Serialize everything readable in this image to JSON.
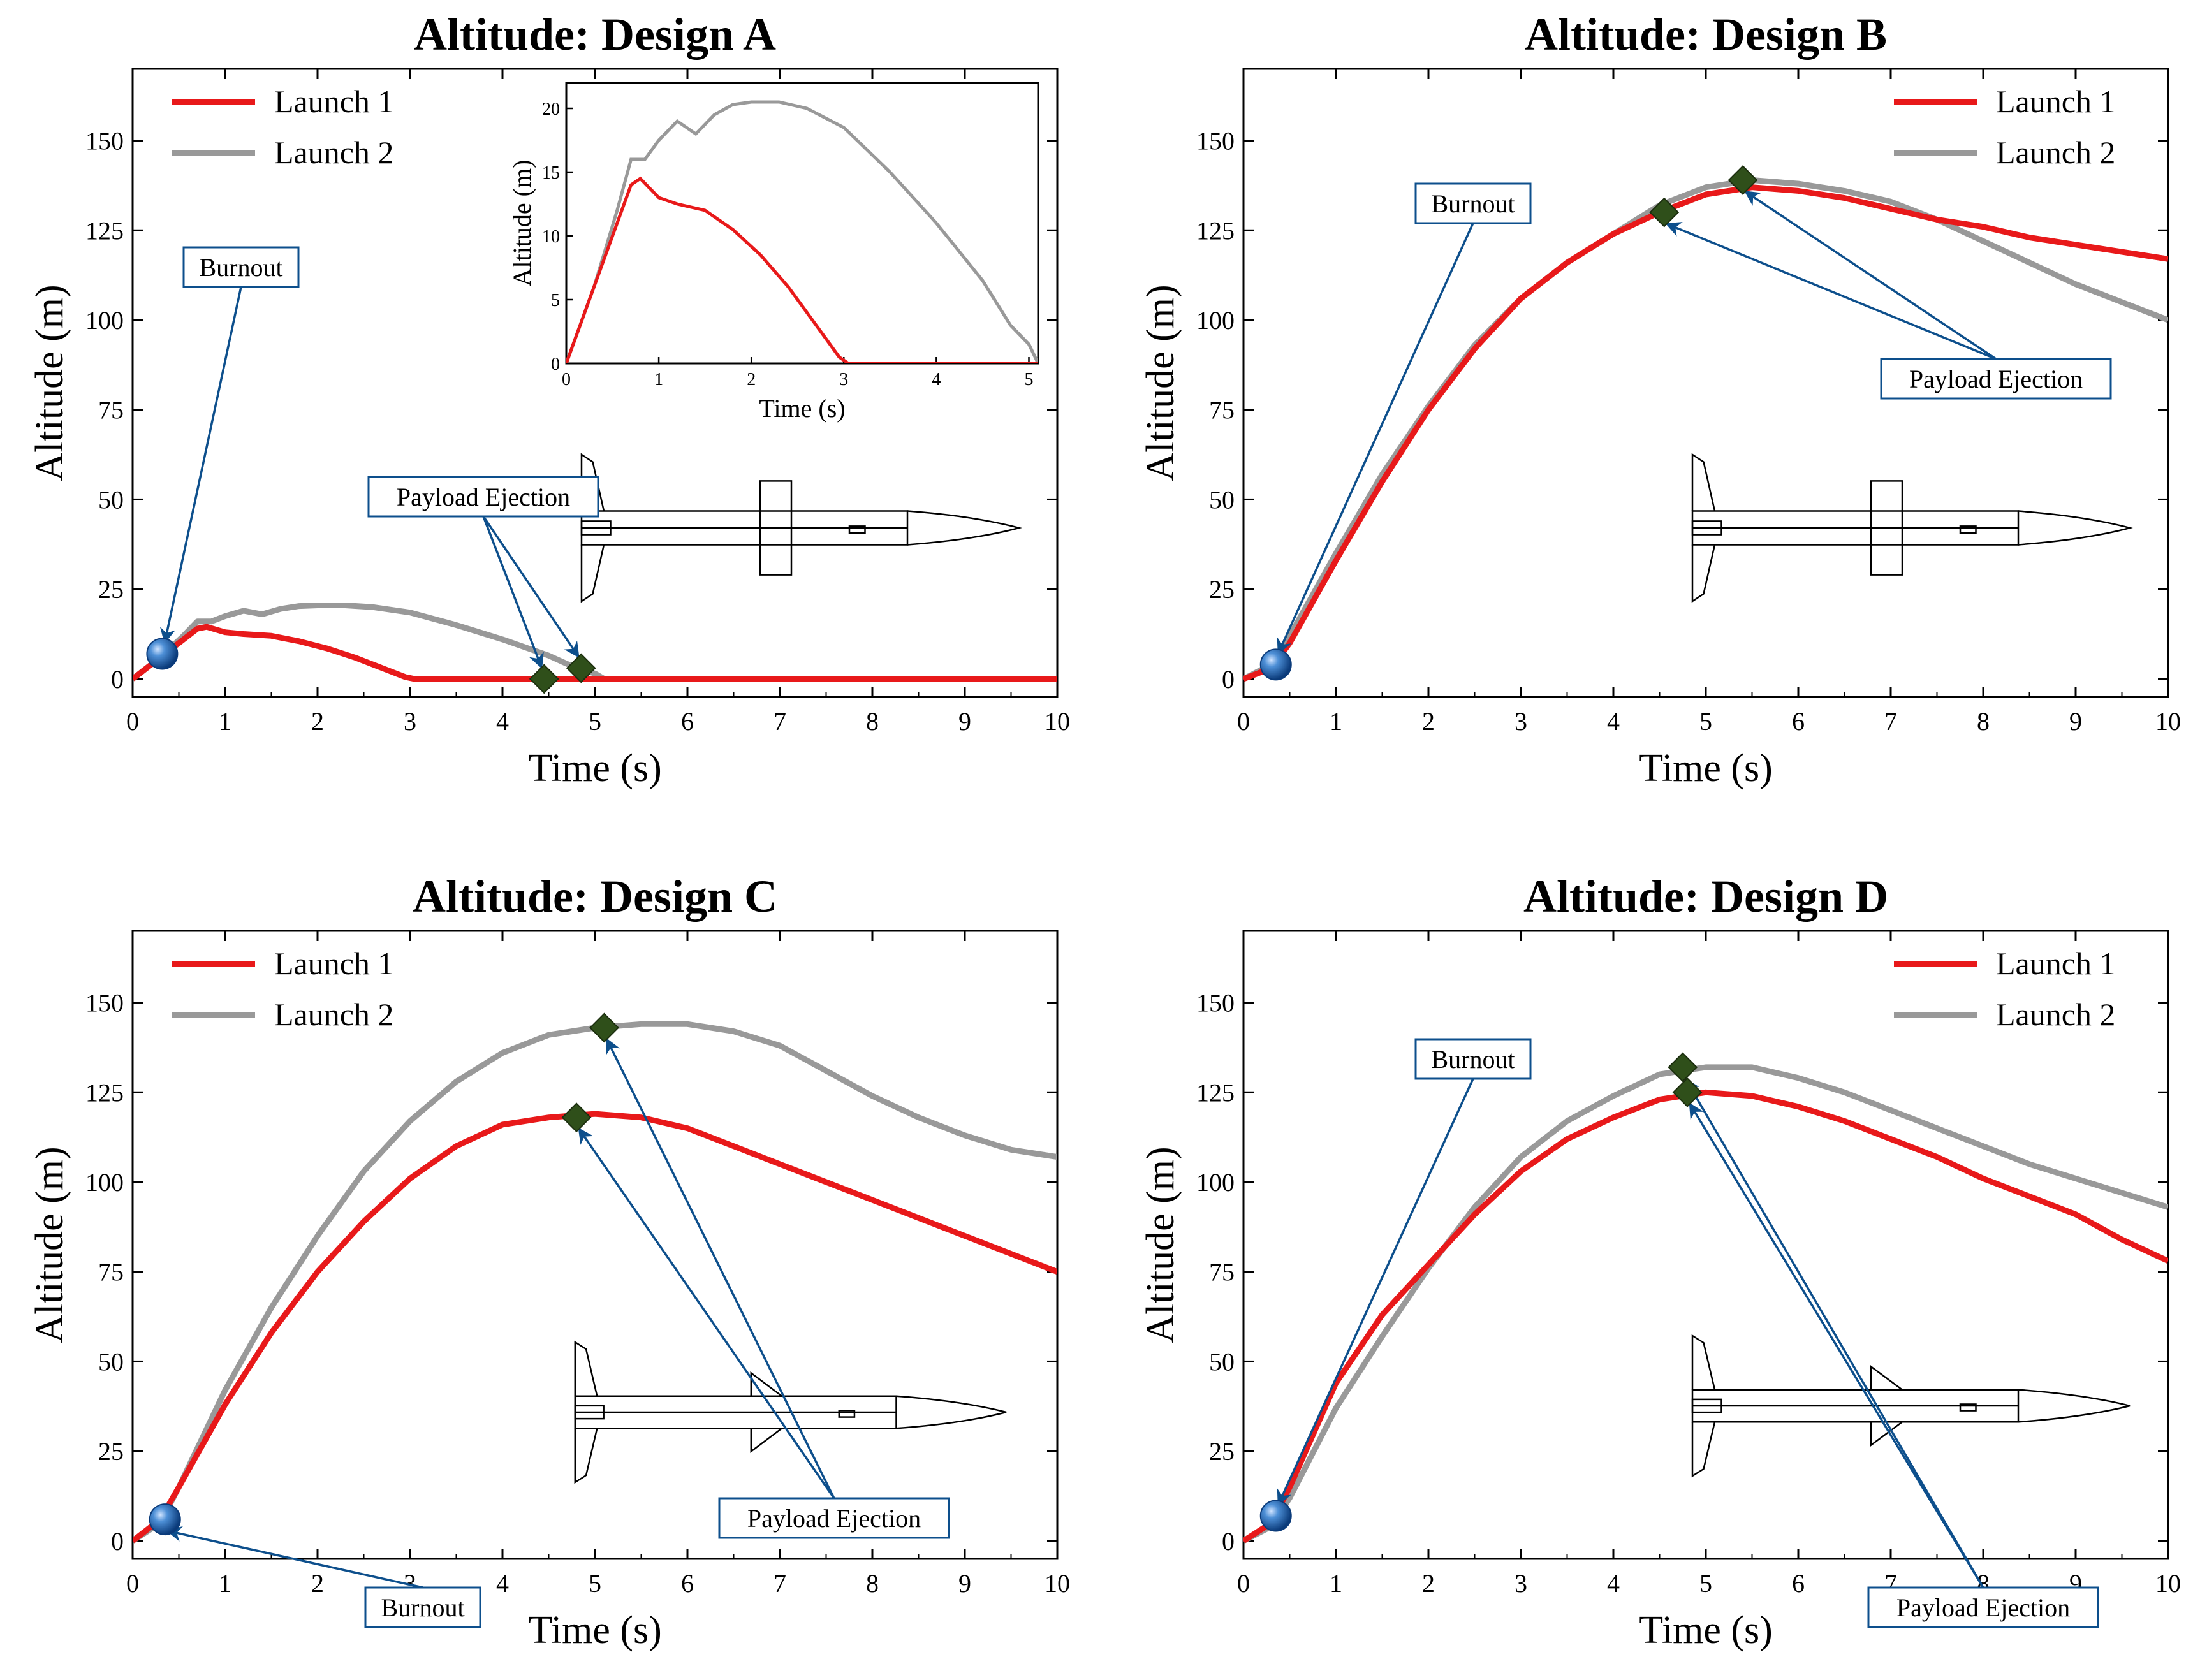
{
  "colors": {
    "launch1": "#e8191a",
    "launch2": "#999999",
    "annotation": "#0d4f8c",
    "diamond": "#2f4f1a",
    "sphere": "#1a5ca8"
  },
  "chart_data": [
    {
      "type": "line",
      "title": "Altitude: Design A",
      "xlabel": "Time (s)",
      "ylabel": "Altitude (m)",
      "xlim": [
        0,
        10
      ],
      "ylim": [
        -5,
        170
      ],
      "xticks": [
        "0",
        "1",
        "2",
        "3",
        "4",
        "5",
        "6",
        "7",
        "8",
        "9",
        "10"
      ],
      "yticks": [
        "0",
        "25",
        "50",
        "75",
        "100",
        "125",
        "150"
      ],
      "legend": "top-left",
      "series": [
        {
          "name": "Launch 1",
          "color": "#e8191a",
          "x": [
            0,
            0.3,
            0.55,
            0.7,
            0.8,
            1.0,
            1.2,
            1.5,
            1.8,
            2.1,
            2.4,
            2.6,
            2.8,
            2.95,
            3.05,
            3.5,
            4.0,
            4.5,
            5.0,
            6.0,
            8.0,
            10.0
          ],
          "y": [
            0,
            6,
            11,
            14,
            14.5,
            13,
            12.5,
            12,
            10.5,
            8.5,
            6,
            4,
            2,
            0.5,
            0,
            0,
            0,
            0,
            0,
            0,
            0,
            0
          ]
        },
        {
          "name": "Launch 2",
          "color": "#999999",
          "x": [
            0,
            0.3,
            0.55,
            0.7,
            0.85,
            1.0,
            1.2,
            1.4,
            1.6,
            1.8,
            2.0,
            2.3,
            2.6,
            3.0,
            3.5,
            4.0,
            4.5,
            4.8,
            5.0,
            5.1,
            5.5,
            6.0,
            8.0,
            10.0
          ],
          "y": [
            0,
            6,
            12,
            16,
            16,
            17.5,
            19,
            18,
            19.5,
            20.3,
            20.5,
            20.5,
            20,
            18.5,
            15,
            11,
            6.5,
            3,
            1.5,
            0,
            0,
            0,
            0,
            0
          ]
        }
      ],
      "annotations": [
        {
          "label": "Burnout",
          "marker": "sphere",
          "point": [
            0.32,
            7
          ]
        },
        {
          "label": "Payload Ejection",
          "marker": "diamond",
          "points": [
            [
              4.45,
              0
            ],
            [
              4.85,
              3
            ]
          ]
        }
      ],
      "inset": {
        "xlabel": "Time (s)",
        "ylabel": "Altitude (m)",
        "xlim": [
          0,
          5.1
        ],
        "ylim": [
          0,
          22
        ],
        "xticks": [
          "0",
          "1",
          "2",
          "3",
          "4",
          "5"
        ],
        "yticks": [
          "0",
          "5",
          "10",
          "15",
          "20"
        ]
      }
    },
    {
      "type": "line",
      "title": "Altitude: Design B",
      "xlabel": "Time (s)",
      "ylabel": "Altitude (m)",
      "xlim": [
        0,
        10
      ],
      "ylim": [
        -5,
        170
      ],
      "xticks": [
        "0",
        "1",
        "2",
        "3",
        "4",
        "5",
        "6",
        "7",
        "8",
        "9",
        "10"
      ],
      "yticks": [
        "0",
        "25",
        "50",
        "75",
        "100",
        "125",
        "150"
      ],
      "legend": "top-right",
      "series": [
        {
          "name": "Launch 1",
          "color": "#e8191a",
          "x": [
            0,
            0.3,
            0.5,
            1.0,
            1.5,
            2.0,
            2.5,
            3.0,
            3.5,
            4.0,
            4.5,
            5.0,
            5.5,
            6.0,
            6.5,
            7.0,
            7.5,
            8.0,
            8.5,
            9.0,
            9.5,
            10.0
          ],
          "y": [
            0,
            3,
            10,
            33,
            55,
            75,
            92,
            106,
            116,
            124,
            130,
            135,
            137,
            136,
            134,
            131,
            128,
            126,
            123,
            121,
            119,
            117
          ]
        },
        {
          "name": "Launch 2",
          "color": "#999999",
          "x": [
            0,
            0.3,
            0.5,
            1.0,
            1.5,
            2.0,
            2.5,
            3.0,
            3.5,
            4.0,
            4.5,
            5.0,
            5.5,
            6.0,
            6.5,
            7.0,
            7.5,
            8.0,
            8.5,
            9.0,
            9.5,
            10.0
          ],
          "y": [
            0,
            4,
            12,
            35,
            57,
            76,
            93,
            106,
            116,
            124,
            132,
            137,
            139,
            138,
            136,
            133,
            128,
            122,
            116,
            110,
            105,
            100
          ]
        }
      ],
      "annotations": [
        {
          "label": "Burnout",
          "marker": "sphere",
          "point": [
            0.35,
            4
          ]
        },
        {
          "label": "Payload Ejection",
          "marker": "diamond",
          "points": [
            [
              4.55,
              130
            ],
            [
              5.4,
              139
            ]
          ]
        }
      ]
    },
    {
      "type": "line",
      "title": "Altitude: Design C",
      "xlabel": "Time (s)",
      "ylabel": "Altitude (m)",
      "xlim": [
        0,
        10
      ],
      "ylim": [
        -5,
        170
      ],
      "xticks": [
        "0",
        "1",
        "2",
        "3",
        "4",
        "5",
        "6",
        "7",
        "8",
        "9",
        "10"
      ],
      "yticks": [
        "0",
        "25",
        "50",
        "75",
        "100",
        "125",
        "150"
      ],
      "legend": "top-left",
      "series": [
        {
          "name": "Launch 1",
          "color": "#e8191a",
          "x": [
            0,
            0.3,
            0.5,
            1.0,
            1.5,
            2.0,
            2.5,
            3.0,
            3.5,
            4.0,
            4.5,
            5.0,
            5.5,
            6.0,
            6.5,
            7.0,
            7.5,
            8.0,
            8.5,
            9.0,
            9.5,
            10.0
          ],
          "y": [
            0,
            6,
            15,
            38,
            58,
            75,
            89,
            101,
            110,
            116,
            118,
            119,
            118,
            115,
            110,
            105,
            100,
            95,
            90,
            85,
            80,
            75
          ]
        },
        {
          "name": "Launch 2",
          "color": "#999999",
          "x": [
            0,
            0.3,
            0.5,
            1.0,
            1.5,
            2.0,
            2.5,
            3.0,
            3.5,
            4.0,
            4.5,
            5.0,
            5.5,
            6.0,
            6.5,
            7.0,
            7.5,
            8.0,
            8.5,
            9.0,
            9.5,
            10.0
          ],
          "y": [
            0,
            5,
            15,
            42,
            65,
            85,
            103,
            117,
            128,
            136,
            141,
            143,
            144,
            144,
            142,
            138,
            131,
            124,
            118,
            113,
            109,
            107
          ]
        }
      ],
      "annotations": [
        {
          "label": "Burnout",
          "marker": "sphere",
          "point": [
            0.35,
            6
          ]
        },
        {
          "label": "Payload Ejection",
          "marker": "diamond",
          "points": [
            [
              4.8,
              118
            ],
            [
              5.1,
              143
            ]
          ]
        }
      ]
    },
    {
      "type": "line",
      "title": "Altitude: Design D",
      "xlabel": "Time (s)",
      "ylabel": "Altitude (m)",
      "xlim": [
        0,
        10
      ],
      "ylim": [
        -5,
        170
      ],
      "xticks": [
        "0",
        "1",
        "2",
        "3",
        "4",
        "5",
        "6",
        "7",
        "8",
        "9",
        "10"
      ],
      "yticks": [
        "0",
        "25",
        "50",
        "75",
        "100",
        "125",
        "150"
      ],
      "legend": "top-right",
      "series": [
        {
          "name": "Launch 1",
          "color": "#e8191a",
          "x": [
            0,
            0.3,
            0.5,
            1.0,
            1.5,
            2.0,
            2.5,
            3.0,
            3.5,
            4.0,
            4.5,
            5.0,
            5.5,
            6.0,
            6.5,
            7.0,
            7.5,
            8.0,
            8.5,
            9.0,
            9.5,
            10.0
          ],
          "y": [
            0,
            5,
            15,
            44,
            63,
            77,
            91,
            103,
            112,
            118,
            123,
            125,
            124,
            121,
            117,
            112,
            107,
            101,
            96,
            91,
            84,
            78
          ]
        },
        {
          "name": "Launch 2",
          "color": "#999999",
          "x": [
            0,
            0.3,
            0.5,
            1.0,
            1.5,
            2.0,
            2.5,
            3.0,
            3.5,
            4.0,
            4.5,
            5.0,
            5.5,
            6.0,
            6.5,
            7.0,
            7.5,
            8.0,
            8.5,
            9.0,
            9.5,
            10.0
          ],
          "y": [
            0,
            4,
            12,
            37,
            57,
            76,
            93,
            107,
            117,
            124,
            130,
            132,
            132,
            129,
            125,
            120,
            115,
            110,
            105,
            101,
            97,
            93
          ]
        }
      ],
      "annotations": [
        {
          "label": "Burnout",
          "marker": "sphere",
          "point": [
            0.35,
            7
          ]
        },
        {
          "label": "Payload Ejection",
          "marker": "diamond",
          "points": [
            [
              4.8,
              125
            ],
            [
              4.75,
              132
            ]
          ]
        }
      ]
    }
  ]
}
